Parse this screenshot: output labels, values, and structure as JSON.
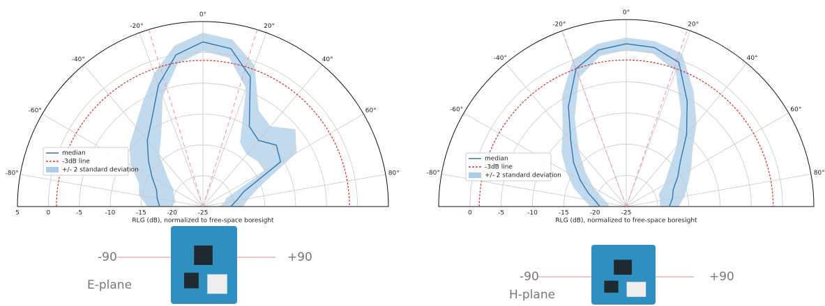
{
  "chart_data": [
    {
      "type": "polar-half",
      "xlabel": "RLG (dB), normalized to free-space boresight",
      "theta": [
        -90,
        -80,
        -70,
        -60,
        -50,
        -40,
        -30,
        -20,
        -10,
        0,
        10,
        20,
        30,
        40,
        50,
        60,
        70,
        80,
        90
      ],
      "series": [
        {
          "name": "median",
          "color": "#2e75b6",
          "values": [
            -18,
            -17.5,
            -17,
            -15.5,
            -13.5,
            -11,
            -8.5,
            -4,
            0,
            1.7,
            1,
            -2.6,
            -10,
            -11,
            -9.5,
            -10.5,
            -18,
            -19.5,
            -20.5
          ]
        },
        {
          "name": "-3dB line",
          "color": "#e02b2b",
          "value": -1.3
        },
        {
          "name": "+/- 2 standard deviation",
          "color": "#aecde8",
          "values": [
            2,
            3,
            3,
            4,
            4,
            3,
            3,
            2,
            1.5,
            1.5,
            1.5,
            2,
            3,
            3,
            4,
            3,
            3,
            2,
            2
          ]
        }
      ],
      "beam_angles": [
        -17,
        17
      ],
      "ylim": [
        -25,
        5
      ],
      "yticks": [
        5,
        0,
        -5,
        -10,
        -15,
        -20,
        -25
      ],
      "thetaticks": [
        {
          "value": -80,
          "label": "-80°"
        },
        {
          "value": -60,
          "label": "-60°"
        },
        {
          "value": -40,
          "label": "-40°"
        },
        {
          "value": -20,
          "label": "-20°"
        },
        {
          "value": 0,
          "label": "0°"
        },
        {
          "value": 20,
          "label": "20°"
        },
        {
          "value": 40,
          "label": "40°"
        },
        {
          "value": 60,
          "label": "60°"
        },
        {
          "value": 80,
          "label": "80°"
        }
      ],
      "grid": true,
      "legend": "left",
      "board": {
        "left": "-90",
        "right": "+90",
        "plane": "E-plane"
      }
    },
    {
      "type": "polar-half",
      "xlabel": "RLG (dB), normalized to free-space boresight",
      "theta": [
        -90,
        -80,
        -70,
        -60,
        -50,
        -40,
        -30,
        -20,
        -10,
        0,
        10,
        20,
        30,
        40,
        50,
        60,
        70,
        80,
        90
      ],
      "series": [
        {
          "name": "median",
          "color": "#2e75b6",
          "values": [
            -20.8,
            -20,
            -18.5,
            -16.5,
            -14,
            -11.2,
            -6.5,
            -1.5,
            0.5,
            1.1,
            0.9,
            -0.4,
            -5.5,
            -10,
            -13.7,
            -15.5,
            -17,
            -17.5,
            -18.1
          ]
        },
        {
          "name": "-3dB line",
          "color": "#e02b2b",
          "value": -1.5
        },
        {
          "name": "+/- 2 standard deviation",
          "color": "#aecde8",
          "values": [
            1.5,
            2,
            2.5,
            2.5,
            2.5,
            2,
            2,
            1.5,
            1,
            1,
            1,
            1.5,
            2,
            2.5,
            2.5,
            2.5,
            2.5,
            2,
            1.5
          ]
        }
      ],
      "beam_angles": [
        -20,
        19
      ],
      "ylim": [
        -25,
        5
      ],
      "yticks": [
        0,
        -5,
        -10,
        -15,
        -20,
        -25
      ],
      "thetaticks": [
        {
          "value": -80,
          "label": "-80°"
        },
        {
          "value": -60,
          "label": "-60°"
        },
        {
          "value": -40,
          "label": "-40°"
        },
        {
          "value": -20,
          "label": "-20°"
        },
        {
          "value": 0,
          "label": "0°"
        },
        {
          "value": 20,
          "label": "20°"
        },
        {
          "value": 40,
          "label": "40°"
        },
        {
          "value": 60,
          "label": "60°"
        },
        {
          "value": 80,
          "label": "80°"
        }
      ],
      "grid": true,
      "legend": "left",
      "board": {
        "left": "-90",
        "right": "+90",
        "plane": "H-plane"
      }
    }
  ]
}
